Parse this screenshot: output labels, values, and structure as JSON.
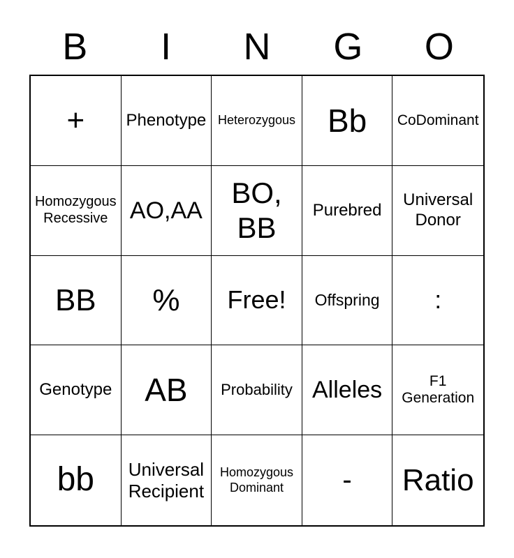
{
  "page": {
    "background_color": "#ffffff",
    "text_color": "#000000",
    "grid_line_color": "#000000"
  },
  "header": {
    "letters": [
      "B",
      "I",
      "N",
      "G",
      "O"
    ]
  },
  "grid": {
    "rows": [
      {
        "cells": [
          "+",
          "Phenotype",
          "Heterozygous",
          "Bb",
          "CoDominant"
        ]
      },
      {
        "cells": [
          "Homozygous\nRecessive",
          "AO,AA",
          "BO,\nBB",
          "Purebred",
          "Universal\nDonor"
        ]
      },
      {
        "cells": [
          "BB",
          "%",
          "Free!",
          "Offspring",
          ":"
        ]
      },
      {
        "cells": [
          "Genotype",
          "AB",
          "Probability",
          "Alleles",
          "F1\nGeneration"
        ]
      },
      {
        "cells": [
          "bb",
          "Universal\nRecipient",
          "Homozygous\nDominant",
          "-",
          "Ratio"
        ]
      }
    ],
    "free_space_label": "Free!"
  }
}
